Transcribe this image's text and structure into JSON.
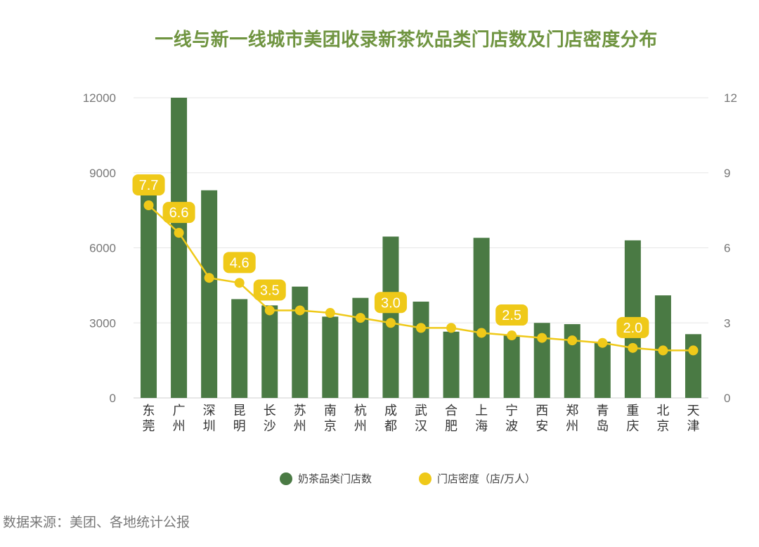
{
  "chart_data": {
    "type": "bar",
    "title": "一线与新一线城市美团收录新茶饮品类门店数及门店密度分布",
    "categories": [
      "东莞",
      "广州",
      "深圳",
      "昆明",
      "长沙",
      "苏州",
      "南京",
      "杭州",
      "成都",
      "武汉",
      "合肥",
      "上海",
      "宁波",
      "西安",
      "郑州",
      "青岛",
      "重庆",
      "北京",
      "天津"
    ],
    "series": [
      {
        "name": "奶茶品类门店数",
        "type": "bar",
        "axis": "left",
        "color": "#4a7a44",
        "values": [
          8100,
          12000,
          8300,
          3950,
          3700,
          4450,
          3250,
          4000,
          6450,
          3850,
          2650,
          6400,
          2500,
          3000,
          2950,
          2250,
          6300,
          4100,
          2550
        ]
      },
      {
        "name": "门店密度（店/万人）",
        "type": "line",
        "axis": "right",
        "color": "#efc919",
        "values": [
          7.7,
          6.6,
          4.8,
          4.6,
          3.5,
          3.5,
          3.4,
          3.2,
          3.0,
          2.8,
          2.8,
          2.6,
          2.5,
          2.4,
          2.3,
          2.2,
          2.0,
          1.9,
          1.9
        ],
        "labeled_points": [
          {
            "index": 0,
            "text": "7.7"
          },
          {
            "index": 1,
            "text": "6.6"
          },
          {
            "index": 3,
            "text": "4.6"
          },
          {
            "index": 4,
            "text": "3.5"
          },
          {
            "index": 8,
            "text": "3.0"
          },
          {
            "index": 12,
            "text": "2.5"
          },
          {
            "index": 16,
            "text": "2.0"
          }
        ]
      }
    ],
    "y_left": {
      "min": 0,
      "max": 12000,
      "ticks": [
        "0",
        "3000",
        "6000",
        "9000",
        "12000"
      ]
    },
    "y_right": {
      "min": 0,
      "max": 12,
      "ticks": [
        "0",
        "3",
        "6",
        "9",
        "12"
      ]
    },
    "grid": true,
    "legend_position": "bottom",
    "source": "数据来源：美团、各地统计公报"
  }
}
